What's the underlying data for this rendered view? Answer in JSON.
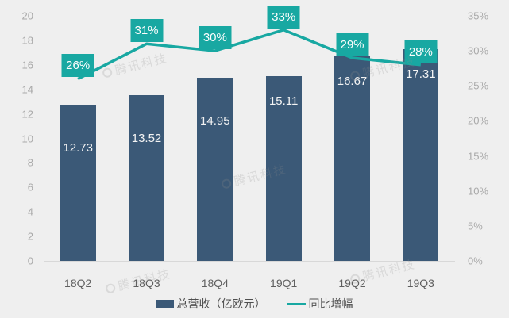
{
  "chart_data": {
    "type": "bar",
    "subtype": "bar-line-combo",
    "title": "",
    "categories": [
      "18Q2",
      "18Q3",
      "18Q4",
      "19Q1",
      "19Q2",
      "19Q3"
    ],
    "series": [
      {
        "name": "总营收（亿欧元）",
        "type": "bar",
        "axis": "left",
        "values": [
          12.73,
          13.52,
          14.95,
          15.11,
          16.67,
          17.31
        ],
        "value_labels": [
          "12.73",
          "13.52",
          "14.95",
          "15.11",
          "16.67",
          "17.31"
        ],
        "color": "#3b5977",
        "label_color": "#f4f4f4"
      },
      {
        "name": "同比增幅",
        "type": "line",
        "axis": "right",
        "values": [
          26,
          31,
          30,
          33,
          29,
          28
        ],
        "value_labels": [
          "26%",
          "31%",
          "30%",
          "33%",
          "29%",
          "28%"
        ],
        "color": "#18a8a2",
        "label_box_color": "#18a8a2",
        "label_text_color": "#fdfdfd"
      }
    ],
    "left_axis": {
      "min": 0,
      "max": 20,
      "step": 2,
      "ticks": [
        "0",
        "2",
        "4",
        "6",
        "8",
        "10",
        "12",
        "14",
        "16",
        "18",
        "20"
      ]
    },
    "right_axis": {
      "min": 0,
      "max": 35,
      "step": 5,
      "ticks": [
        "0%",
        "5%",
        "10%",
        "15%",
        "20%",
        "25%",
        "30%",
        "35%"
      ]
    },
    "grid": false,
    "legend_position": "bottom",
    "background_color": "#efefef",
    "axis_label_color": "#a9a9a9",
    "category_label_color": "#5f5f5f"
  },
  "watermark": {
    "text": "腾讯科技"
  }
}
